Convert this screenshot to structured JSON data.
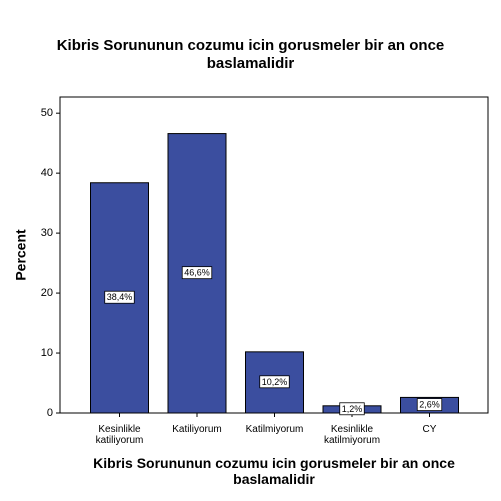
{
  "chart_data": {
    "type": "bar",
    "title": "Kibris Sorununun cozumu icin gorusmeler bir an once baslamalidir",
    "x_label": "Kibris Sorununun cozumu icin gorusmeler bir an once baslamalidir",
    "y_label": "Percent",
    "categories": [
      "Kesinlikle katiliyorum",
      "Katiliyorum",
      "Katilmiyorum",
      "Kesinlikle katilmiyorum",
      "CY"
    ],
    "values": [
      38.4,
      46.6,
      10.2,
      1.2,
      2.6
    ],
    "value_labels": [
      "38,4%",
      "46,6%",
      "10,2%",
      "1,2%",
      "2,6%"
    ],
    "color": "#3b4e9f",
    "ylim": [
      0,
      52.7
    ],
    "yticks": [
      0,
      10,
      20,
      30,
      40,
      50
    ]
  }
}
